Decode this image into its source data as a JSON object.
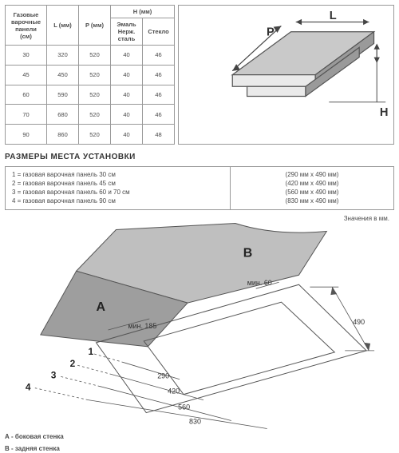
{
  "colors": {
    "border": "#999999",
    "text": "#4a4a4a",
    "bg": "#ffffff",
    "shade": "#c9c9c9",
    "shade_dark": "#9a9a9a"
  },
  "table": {
    "col1_header": "Газовые варочные панели (см)",
    "col2_header": "L (мм)",
    "col3_header": "P (мм)",
    "col4_header_span": "H (мм)",
    "col4a_header": "Эмаль Нерж. сталь",
    "col4b_header": "Стекло",
    "rows": [
      {
        "size": "30",
        "L": "320",
        "P": "520",
        "H1": "40",
        "H2": "46"
      },
      {
        "size": "45",
        "L": "450",
        "P": "520",
        "H1": "40",
        "H2": "46"
      },
      {
        "size": "60",
        "L": "590",
        "P": "520",
        "H1": "40",
        "H2": "46"
      },
      {
        "size": "70",
        "L": "680",
        "P": "520",
        "H1": "40",
        "H2": "46"
      },
      {
        "size": "90",
        "L": "860",
        "P": "520",
        "H1": "40",
        "H2": "48"
      }
    ]
  },
  "panel_diagram": {
    "P_label": "P",
    "L_label": "L",
    "H_label": "H"
  },
  "section_title": "РАЗМЕРЫ МЕСТА УСТАНОВКИ",
  "install_map": {
    "lines": [
      "1 = газовая варочная панель 30 см",
      "2 = газовая варочная панель 45 см",
      "3 = газовая варочная панель 60 и 70 см",
      "4 = газовая варочная панель 90 см"
    ],
    "dims": [
      "(290 мм x 490 мм)",
      "(420 мм x 490 мм)",
      "(560 мм x 490 мм)",
      "(830 мм x 490 мм)"
    ]
  },
  "note_text": "Значения в мм.",
  "cutout": {
    "A": "A",
    "B": "B",
    "min185": "мин. 185",
    "min60": "мин. 60",
    "n1": "1",
    "n2": "2",
    "n3": "3",
    "n4": "4",
    "d290": "290",
    "d420": "420",
    "d560": "560",
    "d830": "830",
    "d490": "490"
  },
  "legend_A": "А - боковая стенка",
  "legend_B": "В - задняя стенка"
}
